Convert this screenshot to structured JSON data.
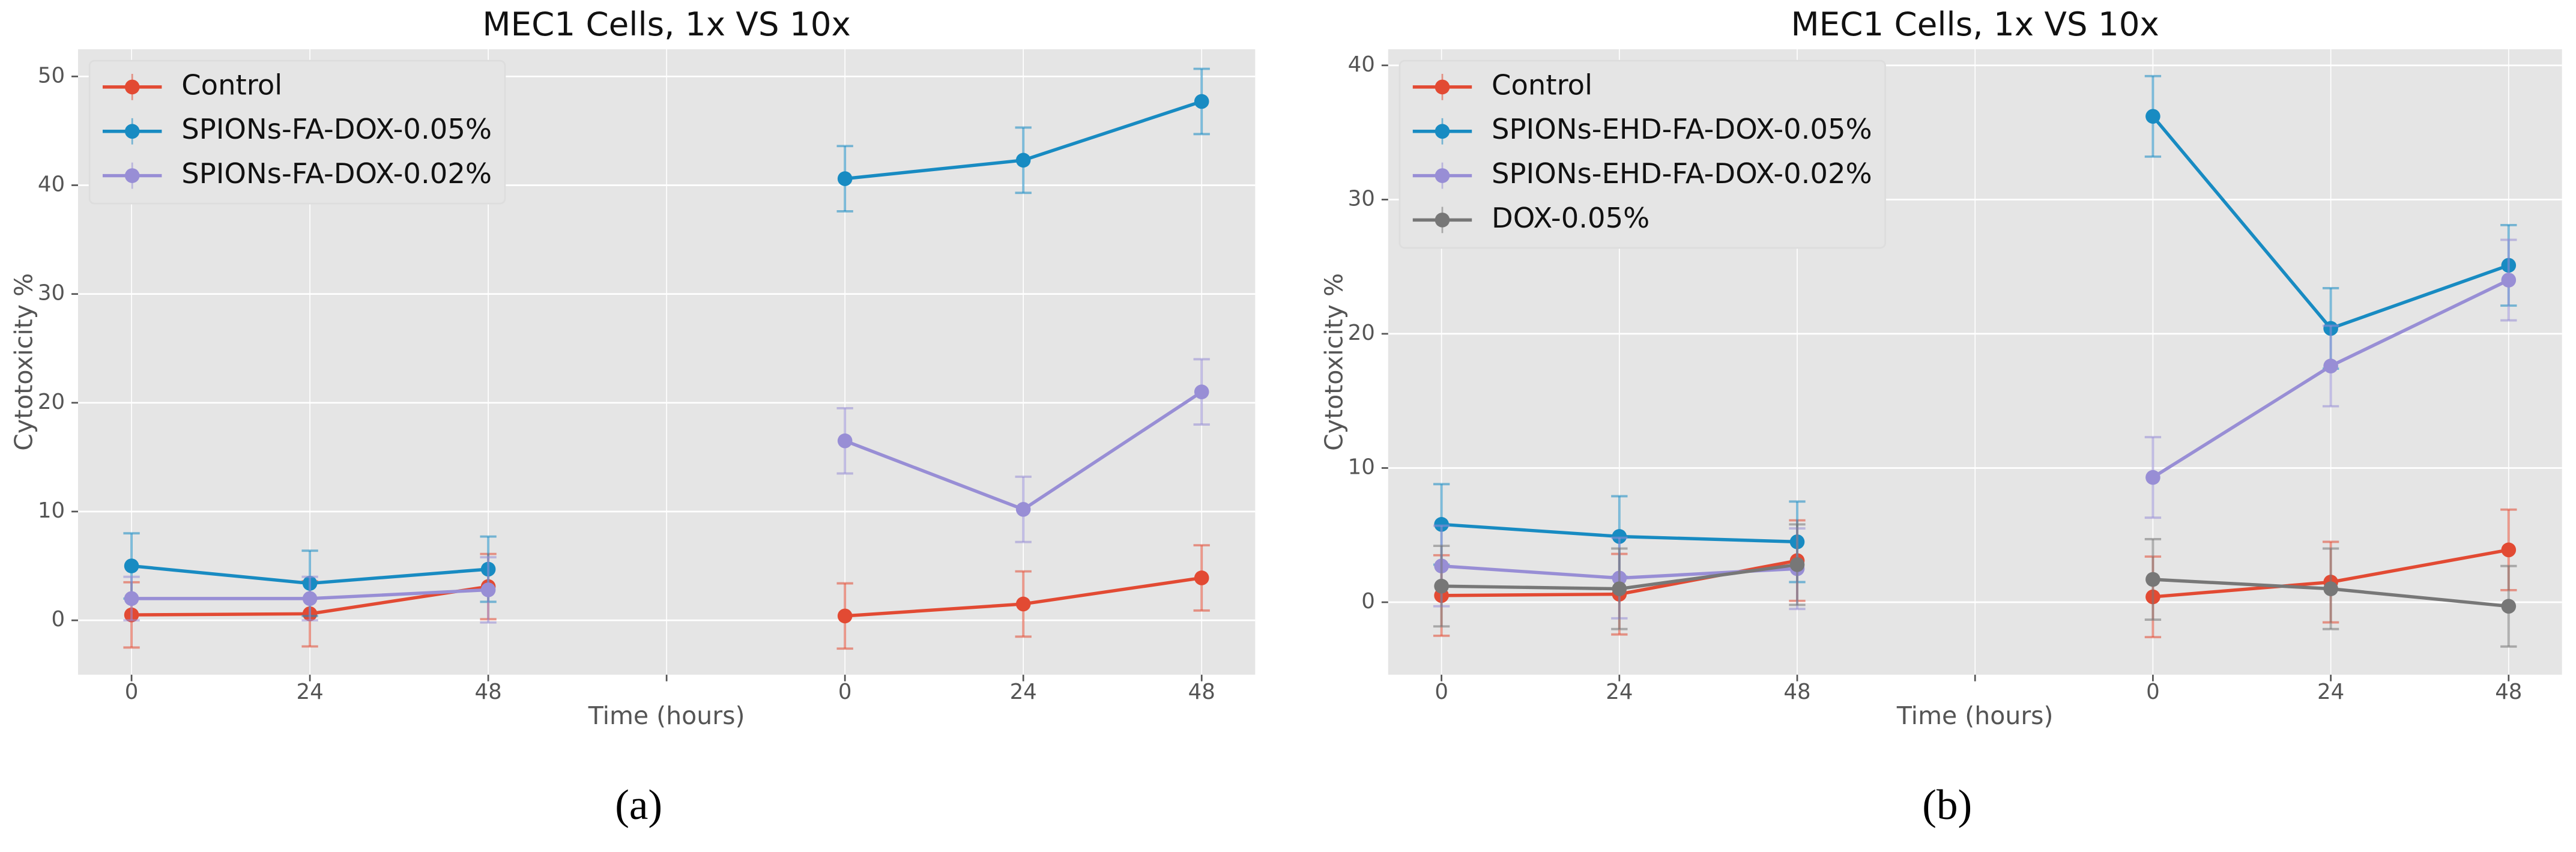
{
  "chart_data": [
    {
      "type": "line",
      "title": "MEC1 Cells, 1x VS 10x",
      "xlabel": "Time (hours)",
      "ylabel": "Cytotoxicity %",
      "panel_label": "(a)",
      "categories": [
        "0",
        "24",
        "48",
        null,
        "0",
        "24",
        "48"
      ],
      "ylim": [
        -5,
        52.5
      ],
      "yticks": [
        0,
        10,
        20,
        30,
        40,
        50
      ],
      "grid": true,
      "legend": "upper left",
      "series": [
        {
          "name": "Control",
          "color": "#E24A33",
          "values": [
            0.5,
            0.6,
            3.1,
            null,
            0.4,
            1.5,
            3.9
          ],
          "errors": [
            3,
            3,
            3,
            null,
            3,
            3,
            3
          ]
        },
        {
          "name": "SPIONs-FA-DOX-0.05%",
          "color": "#188BC2",
          "values": [
            5.0,
            3.4,
            4.7,
            null,
            40.6,
            42.3,
            47.7
          ],
          "errors": [
            3,
            3,
            3,
            null,
            3,
            3,
            3
          ]
        },
        {
          "name": "SPIONs-FA-DOX-0.02%",
          "color": "#988ED5",
          "values": [
            2.0,
            2.0,
            2.8,
            null,
            16.5,
            10.2,
            21.0
          ],
          "errors": [
            2,
            2,
            3,
            null,
            3,
            3,
            3
          ]
        }
      ]
    },
    {
      "type": "line",
      "title": "MEC1 Cells, 1x VS 10x",
      "xlabel": "Time (hours)",
      "ylabel": "Cytotoxicity %",
      "panel_label": "(b)",
      "categories": [
        "0",
        "24",
        "48",
        null,
        "0",
        "24",
        "48"
      ],
      "ylim": [
        -5.4,
        41.2
      ],
      "yticks": [
        0,
        10,
        20,
        30,
        40
      ],
      "grid": true,
      "legend": "upper left",
      "series": [
        {
          "name": "Control",
          "color": "#E24A33",
          "values": [
            0.5,
            0.6,
            3.1,
            null,
            0.4,
            1.5,
            3.9
          ],
          "errors": [
            3,
            3,
            3,
            null,
            3,
            3,
            3
          ]
        },
        {
          "name": "SPIONs-EHD-FA-DOX-0.05%",
          "color": "#188BC2",
          "values": [
            5.8,
            4.9,
            4.5,
            null,
            36.2,
            20.4,
            25.1
          ],
          "errors": [
            3,
            3,
            3,
            null,
            3,
            3,
            3
          ]
        },
        {
          "name": "SPIONs-EHD-FA-DOX-0.02%",
          "color": "#988ED5",
          "values": [
            2.7,
            1.8,
            2.5,
            null,
            9.3,
            17.6,
            24.0
          ],
          "errors": [
            3,
            3,
            3,
            null,
            3,
            3,
            3
          ]
        },
        {
          "name": "DOX-0.05%",
          "color": "#777777",
          "values": [
            1.2,
            1.0,
            2.8,
            null,
            1.7,
            1.0,
            -0.3
          ],
          "errors": [
            3,
            3,
            3,
            null,
            3,
            3,
            3
          ]
        }
      ]
    }
  ]
}
